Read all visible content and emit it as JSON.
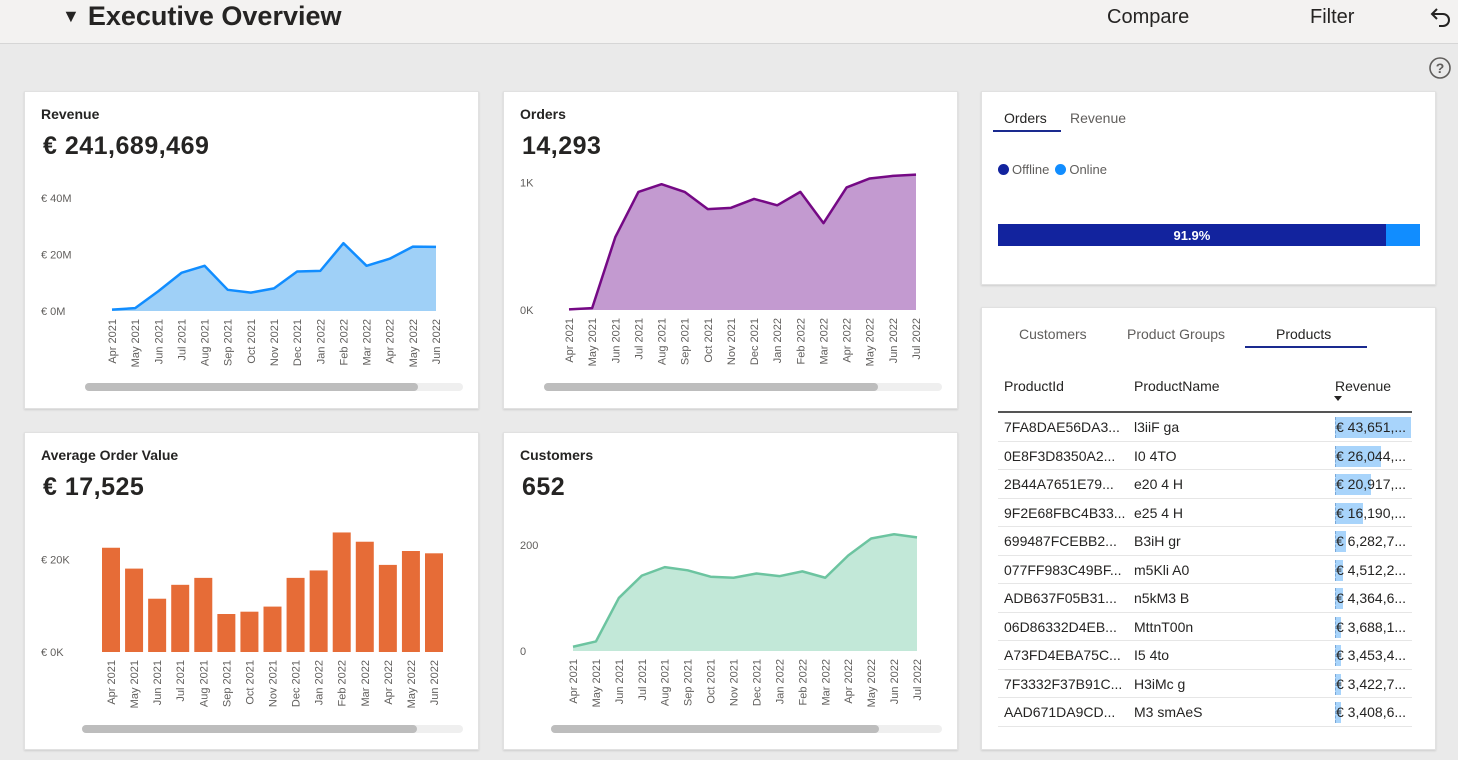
{
  "header": {
    "title": "Executive Overview",
    "compare_label": "Compare",
    "filter_label": "Filter"
  },
  "revenue_card": {
    "title": "Revenue",
    "kpi": "€ 241,689,469",
    "chart_data": {
      "type": "area",
      "categories": [
        "Apr 2021",
        "May 2021",
        "Jun 2021",
        "Jul 2021",
        "Aug 2021",
        "Sep 2021",
        "Oct 2021",
        "Nov 2021",
        "Dec 2021",
        "Jan 2022",
        "Feb 2022",
        "Mar 2022",
        "Apr 2022",
        "May 2022",
        "Jun 2022"
      ],
      "values": [
        0.5,
        1,
        7,
        13.5,
        16,
        7.5,
        6.5,
        8,
        14,
        14.2,
        24,
        16,
        18.5,
        22.8,
        22.7
      ],
      "y_ticks": [
        "€ 0M",
        "€ 20M",
        "€ 40M"
      ],
      "ylim": [
        0,
        40
      ],
      "color": "#118dff",
      "fill": "#9fd0f7",
      "scroll_fraction": 0.88
    }
  },
  "orders_card": {
    "title": "Orders",
    "kpi": "14,293",
    "chart_data": {
      "type": "area",
      "categories": [
        "Apr 2021",
        "May 2021",
        "Jun 2021",
        "Jul 2021",
        "Aug 2021",
        "Sep 2021",
        "Oct 2021",
        "Nov 2021",
        "Dec 2021",
        "Jan 2022",
        "Feb 2022",
        "Mar 2022",
        "Apr 2022",
        "May 2022",
        "Jun 2022",
        "Jul 2022"
      ],
      "values": [
        5,
        15,
        570,
        925,
        985,
        925,
        790,
        800,
        870,
        820,
        925,
        680,
        960,
        1030,
        1050,
        1060
      ],
      "y_ticks": [
        "0K",
        "1K"
      ],
      "ylim": [
        0,
        1300
      ],
      "color": "#750985",
      "fill": "#c39ad0",
      "scroll_fraction": 0.84
    }
  },
  "aov_card": {
    "title": "Average Order Value",
    "kpi": "€ 17,525",
    "chart_data": {
      "type": "bar",
      "categories": [
        "Apr 2021",
        "May 2021",
        "Jun 2021",
        "Jul 2021",
        "Aug 2021",
        "Sep 2021",
        "Oct 2021",
        "Nov 2021",
        "Dec 2021",
        "Jan 2022",
        "Feb 2022",
        "Mar 2022",
        "Apr 2022",
        "May 2022",
        "Jun 2022"
      ],
      "values": [
        22500,
        18000,
        11500,
        14500,
        16000,
        8200,
        8700,
        9800,
        16000,
        17600,
        25800,
        23800,
        18800,
        21800,
        21300
      ],
      "y_ticks": [
        "€ 0K",
        "€ 20K"
      ],
      "ylim": [
        0,
        30000
      ],
      "color": "#e66c37",
      "scroll_fraction": 0.88
    }
  },
  "customers_card": {
    "title": "Customers",
    "kpi": "652",
    "chart_data": {
      "type": "area",
      "categories": [
        "Apr 2021",
        "May 2021",
        "Jun 2021",
        "Jul 2021",
        "Aug 2021",
        "Sep 2021",
        "Oct 2021",
        "Nov 2021",
        "Dec 2021",
        "Jan 2022",
        "Feb 2022",
        "Mar 2022",
        "Apr 2022",
        "May 2022",
        "Jun 2022",
        "Jul 2022"
      ],
      "values": [
        8,
        18,
        100,
        142,
        158,
        152,
        140,
        138,
        146,
        141,
        150,
        138,
        180,
        212,
        220,
        214
      ],
      "y_ticks": [
        "0",
        "200"
      ],
      "ylim": [
        0,
        260
      ],
      "color": "#6cc4a0",
      "fill": "#c2e8d8",
      "scroll_fraction": 0.84
    }
  },
  "channel_card": {
    "tabs": [
      "Orders",
      "Revenue"
    ],
    "active_tab": 0,
    "legend": [
      {
        "name": "Offline",
        "color": "#12239e"
      },
      {
        "name": "Online",
        "color": "#118dff"
      }
    ],
    "chart_data": {
      "type": "bar",
      "categories": [
        "Offline",
        "Online"
      ],
      "values": [
        91.9,
        8.1
      ],
      "data_label": "91.9%"
    }
  },
  "table_card": {
    "tabs": [
      "Customers",
      "Product Groups",
      "Products"
    ],
    "active_tab": 2,
    "columns": [
      "ProductId",
      "ProductName",
      "Revenue"
    ],
    "rows": [
      {
        "id": "7FA8DAE56DA3...",
        "name": "l3iiF ga",
        "revenue": "€ 43,651,...",
        "share": 1.0
      },
      {
        "id": "0E8F3D8350A2...",
        "name": "I0  4TO",
        "revenue": "€ 26,044,...",
        "share": 0.6
      },
      {
        "id": "2B44A7651E79...",
        "name": "e20  4 H",
        "revenue": "€ 20,917,...",
        "share": 0.48
      },
      {
        "id": "9F2E68FBC4B33...",
        "name": "e25  4 H",
        "revenue": "€ 16,190,...",
        "share": 0.37
      },
      {
        "id": "699487FCEBB2...",
        "name": "B3iH  gr",
        "revenue": "€ 6,282,7...",
        "share": 0.144
      },
      {
        "id": "077FF983C49BF...",
        "name": "m5Kli A0",
        "revenue": "€ 4,512,2...",
        "share": 0.103
      },
      {
        "id": "ADB637F05B31...",
        "name": "n5kM3 B",
        "revenue": "€ 4,364,6...",
        "share": 0.1
      },
      {
        "id": "06D86332D4EB...",
        "name": "MttnT00n",
        "revenue": "€ 3,688,1...",
        "share": 0.084
      },
      {
        "id": "A73FD4EBA75C...",
        "name": "I5  4to",
        "revenue": "€ 3,453,4...",
        "share": 0.079
      },
      {
        "id": "7F3332F37B91C...",
        "name": "H3iMc g",
        "revenue": "€ 3,422,7...",
        "share": 0.078
      },
      {
        "id": "AAD671DA9CD...",
        "name": "M3 smAeS",
        "revenue": "€ 3,408,6...",
        "share": 0.078
      }
    ]
  }
}
